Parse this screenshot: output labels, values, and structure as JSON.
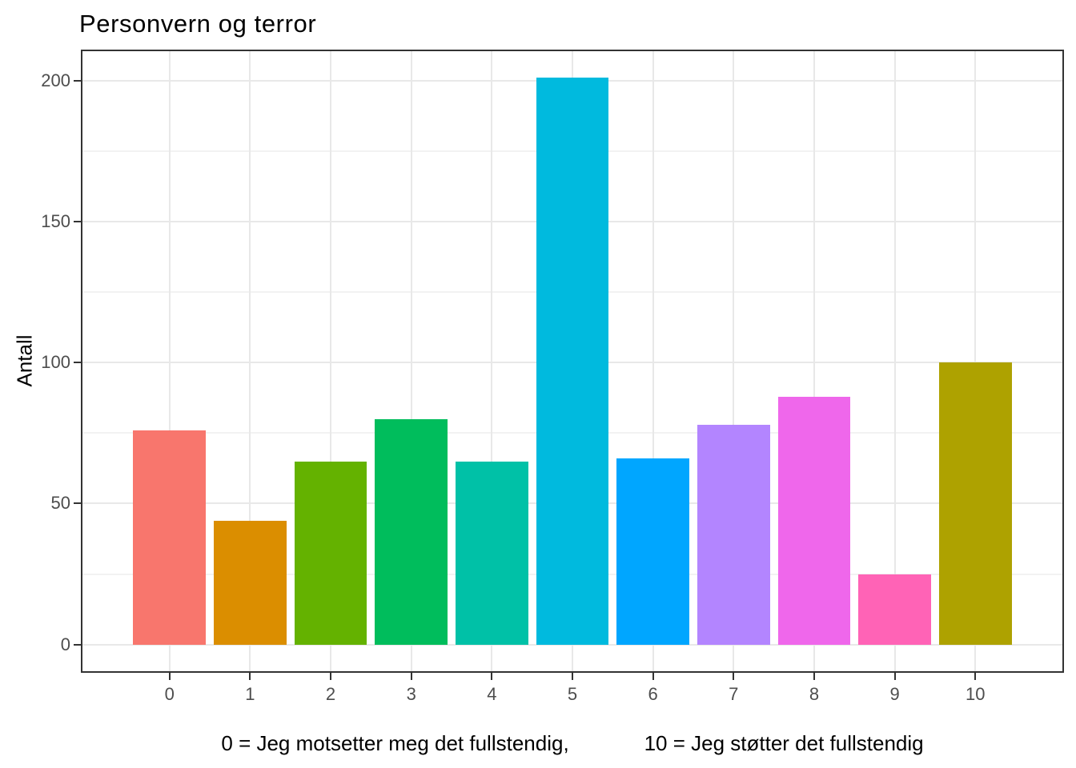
{
  "chart_data": {
    "type": "bar",
    "title": "Personvern og terror",
    "ylabel": "Antall",
    "xlabel": "0 = Jeg motsetter meg det fullstendig,             10 = Jeg støtter det fullstendig",
    "categories": [
      "0",
      "1",
      "2",
      "3",
      "4",
      "5",
      "6",
      "7",
      "8",
      "9",
      "10"
    ],
    "values": [
      76,
      44,
      65,
      80,
      65,
      201,
      66,
      78,
      88,
      25,
      100
    ],
    "bar_colors": [
      "#F8766D",
      "#DB8E00",
      "#64B200",
      "#00BD5C",
      "#00C1A7",
      "#00BADE",
      "#00A6FF",
      "#B385FF",
      "#EF67EB",
      "#FF63B6",
      "#AEA200"
    ],
    "y_major_ticks": [
      0,
      50,
      100,
      150,
      200
    ],
    "y_minor_gridlines": [
      25,
      75,
      125,
      175
    ],
    "ylim": [
      0,
      201
    ],
    "y_expansion_fraction": 0.05,
    "x_expansion_units": 0.6,
    "bar_width_fraction": 0.9,
    "grid": "horizontal major+minor, vertical major at category centers",
    "legend_position": "none"
  },
  "style_colors": {
    "background": "#FFFFFF",
    "panel_background": "#FFFFFF",
    "panel_border": "#333333",
    "grid_major": "#E8E8E8",
    "grid_minor": "#F2F2F2",
    "tick_mark": "#333333",
    "tick_label": "#4D4D4D",
    "text": "#000000"
  }
}
